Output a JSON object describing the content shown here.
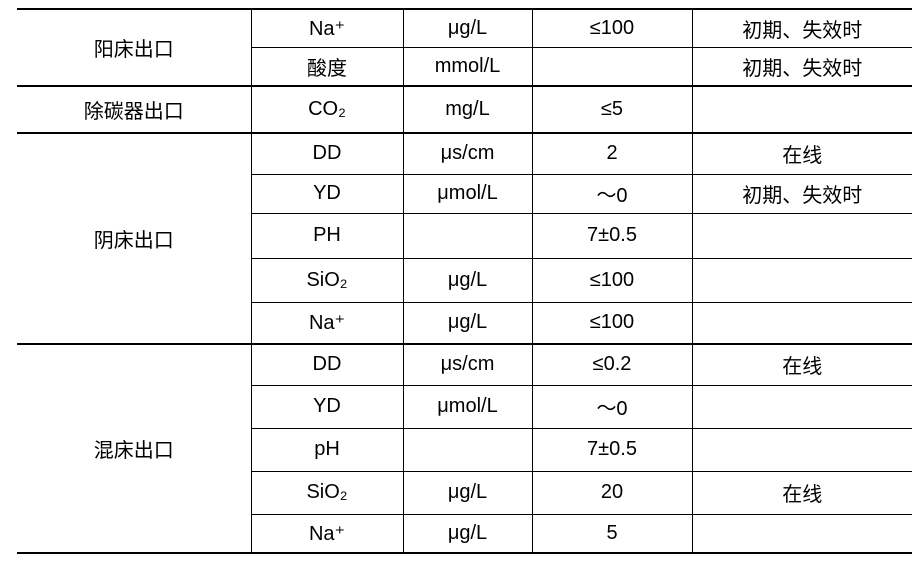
{
  "table": {
    "groups": [
      {
        "label": "阳床出口",
        "rows": [
          [
            "Na⁺",
            "μg/L",
            "≤100",
            "初期、失效时"
          ],
          [
            "酸度",
            "mmol/L",
            null,
            "初期、失效时"
          ]
        ]
      },
      {
        "label": "除碳器出口",
        "rows": [
          [
            "CO₂",
            "mg/L",
            "≤5",
            null
          ]
        ]
      },
      {
        "label": "阴床出口",
        "rows": [
          [
            "DD",
            "μs/cm",
            "2",
            "在线"
          ],
          [
            "YD",
            "μmol/L",
            "～0",
            "初期、失效时"
          ],
          [
            "PH",
            null,
            "7±0.5",
            null
          ],
          [
            "SiO₂",
            "μg/L",
            "≤100",
            null
          ],
          [
            "Na⁺",
            "μg/L",
            "≤100",
            null
          ]
        ]
      },
      {
        "label": "混床出口",
        "rows": [
          [
            "DD",
            "μs/cm",
            "≤0.2",
            "在线"
          ],
          [
            "YD",
            "μmol/L",
            "～0",
            null
          ],
          [
            "pH",
            null,
            "7±0.5",
            null
          ],
          [
            "SiO₂",
            "μg/L",
            "20",
            "在线"
          ],
          [
            "Na⁺",
            "μg/L",
            "5",
            null
          ]
        ]
      }
    ]
  }
}
